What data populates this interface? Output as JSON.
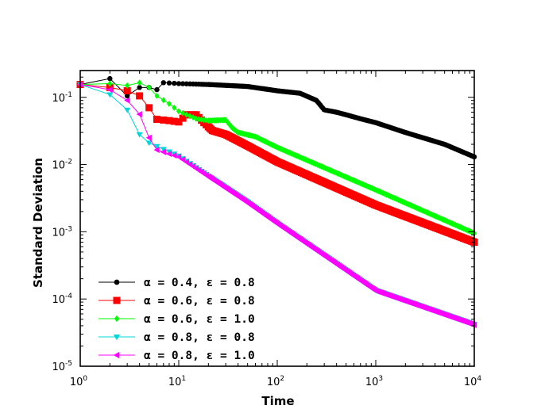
{
  "chart_data": {
    "type": "line",
    "title": "",
    "xlabel": "Time",
    "ylabel": "Standard Deviation",
    "xscale": "log",
    "yscale": "log",
    "xlim": [
      1,
      10000
    ],
    "ylim": [
      1e-05,
      0.25
    ],
    "grid": false,
    "legend_position": "bottom-left",
    "x_ticks": [
      {
        "base": "10",
        "exp": "0"
      },
      {
        "base": "10",
        "exp": "1"
      },
      {
        "base": "10",
        "exp": "2"
      },
      {
        "base": "10",
        "exp": "3"
      },
      {
        "base": "10",
        "exp": "4"
      }
    ],
    "y_ticks": [
      {
        "base": "10",
        "exp": "-1"
      },
      {
        "base": "10",
        "exp": "-2"
      },
      {
        "base": "10",
        "exp": "-3"
      },
      {
        "base": "10",
        "exp": "-4"
      },
      {
        "base": "10",
        "exp": "-5"
      }
    ],
    "series": [
      {
        "name": "α = 0.4, ε = 0.8",
        "color": "#000000",
        "marker": "circle",
        "points": [
          [
            1,
            0.155
          ],
          [
            2,
            0.19
          ],
          [
            3,
            0.105
          ],
          [
            4,
            0.14
          ],
          [
            5,
            0.14
          ],
          [
            6,
            0.13
          ],
          [
            7,
            0.165
          ],
          [
            10,
            0.16
          ],
          [
            20,
            0.155
          ],
          [
            50,
            0.145
          ],
          [
            100,
            0.125
          ],
          [
            170,
            0.115
          ],
          [
            250,
            0.09
          ],
          [
            300,
            0.065
          ],
          [
            400,
            0.06
          ],
          [
            500,
            0.055
          ],
          [
            700,
            0.048
          ],
          [
            1000,
            0.042
          ],
          [
            2000,
            0.03
          ],
          [
            5000,
            0.02
          ],
          [
            10000,
            0.013
          ]
        ]
      },
      {
        "name": "α = 0.6, ε = 0.8",
        "color": "#ff0000",
        "marker": "square",
        "points": [
          [
            1,
            0.155
          ],
          [
            2,
            0.14
          ],
          [
            3,
            0.125
          ],
          [
            4,
            0.105
          ],
          [
            5,
            0.07
          ],
          [
            6,
            0.047
          ],
          [
            8,
            0.045
          ],
          [
            10,
            0.043
          ],
          [
            12,
            0.055
          ],
          [
            15,
            0.055
          ],
          [
            18,
            0.042
          ],
          [
            22,
            0.032
          ],
          [
            30,
            0.028
          ],
          [
            50,
            0.019
          ],
          [
            100,
            0.011
          ],
          [
            1000,
            0.0025
          ],
          [
            10000,
            0.0007
          ]
        ]
      },
      {
        "name": "α = 0.6, ε = 1.0",
        "color": "#00ff00",
        "marker": "diamond",
        "points": [
          [
            1,
            0.155
          ],
          [
            2,
            0.16
          ],
          [
            3,
            0.15
          ],
          [
            4,
            0.165
          ],
          [
            5,
            0.14
          ],
          [
            6,
            0.105
          ],
          [
            8,
            0.08
          ],
          [
            10,
            0.062
          ],
          [
            15,
            0.048
          ],
          [
            20,
            0.045
          ],
          [
            30,
            0.046
          ],
          [
            35,
            0.035
          ],
          [
            40,
            0.03
          ],
          [
            60,
            0.026
          ],
          [
            100,
            0.018
          ],
          [
            1000,
            0.0042
          ],
          [
            10000,
            0.00095
          ]
        ]
      },
      {
        "name": "α = 0.8, ε = 0.8",
        "color": "#00d8d8",
        "marker": "triangle-down",
        "points": [
          [
            1,
            0.155
          ],
          [
            2,
            0.11
          ],
          [
            3,
            0.065
          ],
          [
            4,
            0.028
          ],
          [
            5,
            0.021
          ],
          [
            10,
            0.0135
          ],
          [
            20,
            0.0068
          ],
          [
            50,
            0.0028
          ],
          [
            100,
            0.00135
          ],
          [
            1000,
            0.000135
          ],
          [
            10000,
            4.2e-05
          ]
        ]
      },
      {
        "name": "α = 0.8, ε = 1.0",
        "color": "#ff00ff",
        "marker": "triangle-left",
        "points": [
          [
            1,
            0.155
          ],
          [
            2,
            0.13
          ],
          [
            3,
            0.09
          ],
          [
            4,
            0.056
          ],
          [
            5,
            0.025
          ],
          [
            6,
            0.0165
          ],
          [
            10,
            0.013
          ],
          [
            20,
            0.0066
          ],
          [
            50,
            0.0027
          ],
          [
            100,
            0.00132
          ],
          [
            1000,
            0.000132
          ],
          [
            10000,
            4.1e-05
          ]
        ]
      }
    ]
  }
}
